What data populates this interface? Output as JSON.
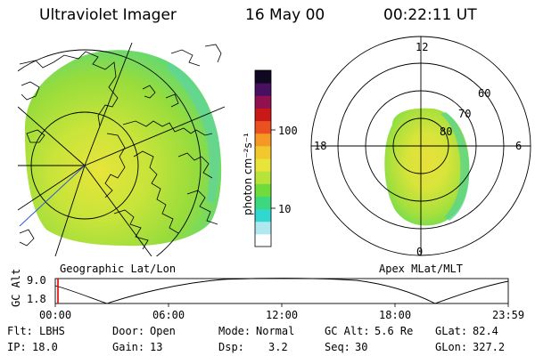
{
  "header": {
    "title": "Ultraviolet Imager",
    "date": "16 May 00",
    "time": "00:22:11 UT"
  },
  "colorbar": {
    "unit_label": "photon cm⁻²s⁻¹",
    "tick_100": "100",
    "tick_10": "10",
    "colors": [
      "#ffffff",
      "#b0e8ef",
      "#30d8d0",
      "#3cd880",
      "#6fdc3c",
      "#b8e43a",
      "#e8e43a",
      "#f2c82c",
      "#f49a24",
      "#ea5020",
      "#c81818",
      "#901050",
      "#481060",
      "#100820"
    ]
  },
  "geo_panel": {
    "label": "Geographic Lat/Lon"
  },
  "polar_panel": {
    "label": "Apex MLat/MLT",
    "mlt_12": "12",
    "mlt_18": "18",
    "mlt_6": "6",
    "mlt_0": "0",
    "lat_60": "60",
    "lat_70": "70",
    "lat_80": "80"
  },
  "altitude_plot": {
    "ylabel": "GC Alt",
    "y_max": "9.0",
    "y_min": "1.8",
    "x_ticks": [
      "00:00",
      "06:00",
      "12:00",
      "18:00",
      "23:59"
    ]
  },
  "info": {
    "flt_label": "Flt:",
    "flt": "LBHS",
    "ip_label": "IP:",
    "ip": "18.0",
    "door_label": "Door:",
    "door": "Open",
    "gain_label": "Gain:",
    "gain": "13",
    "mode_label": "Mode:",
    "mode": "Normal",
    "dsp_label": "Dsp:",
    "dsp": "3.2",
    "gcalt_label": "GC Alt:",
    "gcalt": "5.6 Re",
    "seq_label": "Seq:",
    "seq": "30",
    "glat_label": "GLat:",
    "glat": "82.4",
    "glon_label": "GLon:",
    "glon": "327.2"
  }
}
